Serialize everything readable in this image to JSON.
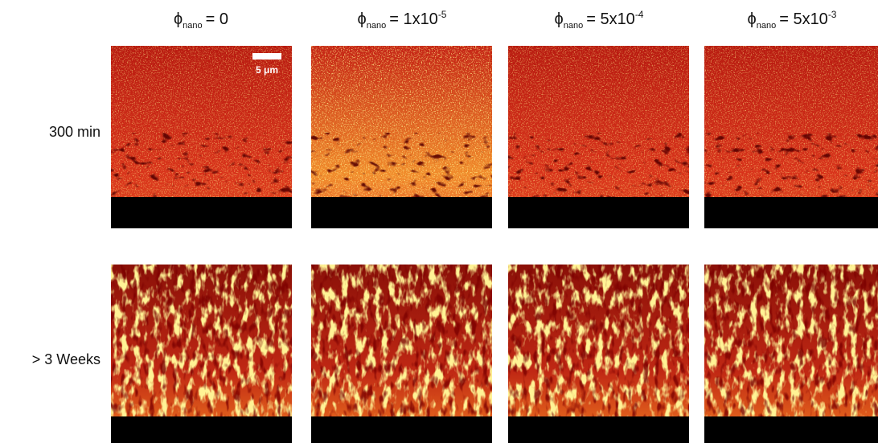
{
  "columns": [
    {
      "symbol": "ϕ",
      "subscript": "nano",
      "text": "= 0"
    },
    {
      "symbol": "ϕ",
      "subscript": "nano",
      "text": "= 1x10",
      "superscript": "-5"
    },
    {
      "symbol": "ϕ",
      "subscript": "nano",
      "text": "= 5x10",
      "superscript": "-4"
    },
    {
      "symbol": "ϕ",
      "subscript": "nano",
      "text": "= 5x10",
      "superscript": "-3"
    }
  ],
  "rows": [
    {
      "label": "300 min"
    },
    {
      "label": "> 3 Weeks"
    }
  ],
  "scale_bar": "5 μm"
}
